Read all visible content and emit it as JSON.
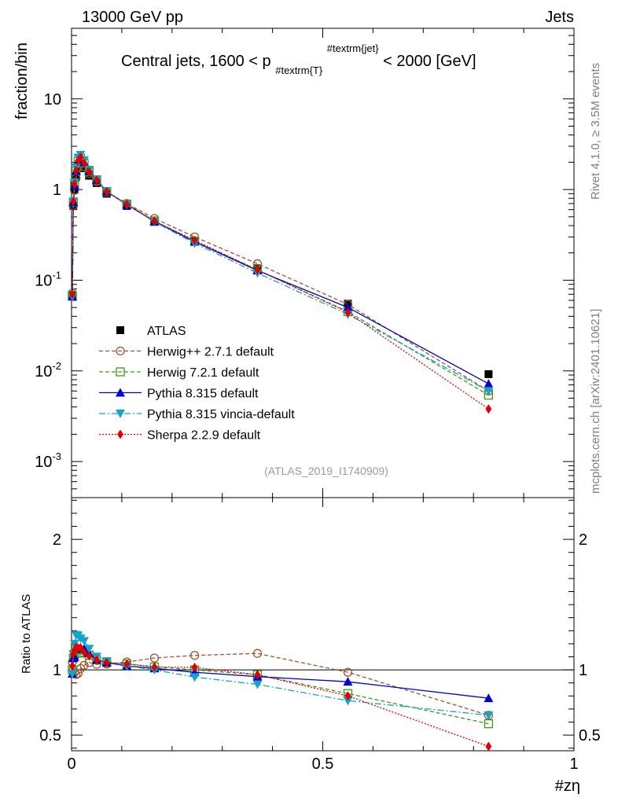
{
  "header": {
    "left": "13000 GeV pp",
    "right": "Jets",
    "title": "Central jets, 1600 < p#textrm{T}#textrm{jet} < 2000 [GeV]",
    "side_right_top": "Rivet 4.1.0, ≥ 3.5M events",
    "side_right_bottom": "mcplots.cern.ch [arXiv:2401.10621]",
    "analysis_id": "(ATLAS_2019_I1740909)"
  },
  "chart_data": {
    "type": "line",
    "title": "Central jets, 1600 < p#textrm{T}#textrm{jet} < 2000 [GeV]",
    "xlabel": "#zη",
    "ylabel": "fraction/bin",
    "ratio_ylabel": "Ratio to ATLAS",
    "xlim": [
      0,
      1
    ],
    "ylim": [
      0.0004,
      60
    ],
    "yscale": "log",
    "ratio_ylim": [
      0.38,
      2.32
    ],
    "x_ticks": [
      "0",
      "0.5",
      "1"
    ],
    "y_ticks": [
      "10",
      "1",
      "10^-1",
      "10^-2",
      "10^-3"
    ],
    "ratio_ticks": [
      "2",
      "1",
      "0.5"
    ],
    "legend_position": "center-left",
    "x": [
      0.0015,
      0.0035,
      0.006,
      0.009,
      0.013,
      0.018,
      0.025,
      0.035,
      0.05,
      0.07,
      0.11,
      0.165,
      0.245,
      0.37,
      0.55,
      0.83
    ],
    "series": [
      {
        "name": "ATLAS",
        "color": "#000000",
        "marker": "square",
        "values": [
          0.068,
          0.66,
          1.0,
          1.38,
          1.78,
          1.95,
          1.72,
          1.42,
          1.18,
          0.9,
          0.66,
          0.44,
          0.27,
          0.135,
          0.055,
          0.0092
        ]
      },
      {
        "name": "Herwig++ 2.7.1 default",
        "color": "#a0522d",
        "marker": "open-circle",
        "dash": "5,3",
        "values": [
          0.072,
          0.66,
          0.98,
          1.33,
          1.73,
          1.97,
          1.78,
          1.5,
          1.23,
          0.94,
          0.7,
          0.48,
          0.3,
          0.152,
          0.054,
          0.006
        ]
      },
      {
        "name": "Herwig 7.2.1 default",
        "color": "#3a9b1a",
        "marker": "open-square",
        "dash": "5,3",
        "values": [
          0.068,
          0.72,
          1.12,
          1.6,
          2.05,
          2.2,
          1.95,
          1.58,
          1.27,
          0.95,
          0.69,
          0.45,
          0.27,
          0.13,
          0.045,
          0.0054
        ]
      },
      {
        "name": "Pythia 8.315 default",
        "color": "#0000d0",
        "marker": "triangle-up",
        "dash": "",
        "values": [
          0.066,
          0.72,
          1.1,
          1.6,
          2.08,
          2.28,
          2.0,
          1.6,
          1.27,
          0.95,
          0.68,
          0.445,
          0.265,
          0.128,
          0.05,
          0.0072
        ]
      },
      {
        "name": "Pythia 8.315 vincia-default",
        "color": "#17a2c6",
        "marker": "triangle-down",
        "dash": "8,3,2,3",
        "values": [
          0.066,
          0.74,
          1.2,
          1.75,
          2.25,
          2.42,
          2.1,
          1.65,
          1.3,
          0.96,
          0.68,
          0.44,
          0.255,
          0.12,
          0.042,
          0.006
        ]
      },
      {
        "name": "Sherpa 2.2.9 default",
        "color": "#e00000",
        "marker": "diamond",
        "dash": "2,2",
        "values": [
          0.07,
          0.74,
          1.15,
          1.62,
          2.08,
          2.28,
          1.95,
          1.57,
          1.27,
          0.95,
          0.69,
          0.45,
          0.275,
          0.13,
          0.044,
          0.0038
        ]
      }
    ]
  }
}
